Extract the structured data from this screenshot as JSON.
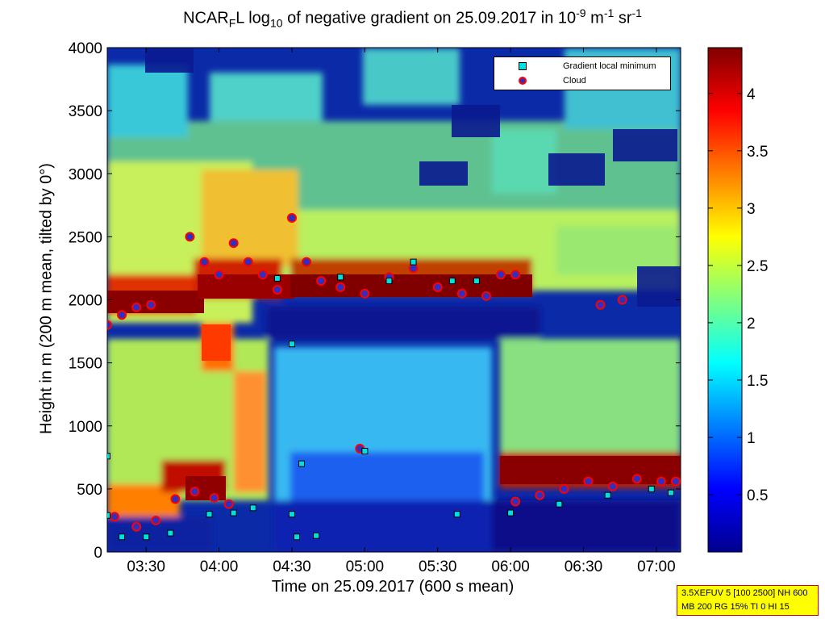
{
  "window": {
    "title_main": "NCAR",
    "title_sub1": "F",
    "title_mid": "L log",
    "title_sub2": "10",
    "title_rest": " of negative gradient on 25.09.2017 in 10",
    "title_sup1": "-9",
    "title_unit1": " m",
    "title_sup2": "-1",
    "title_unit2": " sr",
    "title_sup3": "-1"
  },
  "colors": {
    "cloud_marker_edge": "#ff0000",
    "cloud_marker_fill": "#3030c0",
    "minimum_marker_fill": "#00e0e0",
    "info_bg": "#ffff00",
    "info_border": "#d40000"
  },
  "info_box": {
    "line1": "3.5XEFUV 5 [100 2500] NH 600",
    "line2": "MB 200 RG 15% TI 0 HI 15"
  },
  "chart_data": {
    "type": "heatmap",
    "title": "NCAR_F L log10 of negative gradient on 25.09.2017 in 10^-9 m^-1 sr^-1",
    "xlabel": "Time on 25.09.2017 (600 s mean)",
    "ylabel": "Height in m (200 m mean, tilted by 0°)",
    "x_ticks": [
      "03:30",
      "04:00",
      "04:30",
      "05:00",
      "05:30",
      "06:00",
      "06:30",
      "07:00"
    ],
    "x_tick_minutes": [
      210,
      240,
      270,
      300,
      330,
      360,
      390,
      420
    ],
    "xlim_minutes": [
      194,
      430
    ],
    "y_ticks": [
      0,
      500,
      1000,
      1500,
      2000,
      2500,
      3000,
      3500,
      4000
    ],
    "ylim": [
      0,
      4000
    ],
    "colorbar": {
      "ticks": [
        "0.5",
        "1",
        "1.5",
        "2",
        "2.5",
        "3",
        "3.5",
        "4"
      ],
      "tick_values": [
        0.5,
        1,
        1.5,
        2,
        2.5,
        3,
        3.5,
        4
      ],
      "range": [
        0,
        4.4
      ],
      "colormap": "jet"
    },
    "legend": {
      "placement": "top-right",
      "entries": [
        "Gradient local minimum",
        "Cloud"
      ]
    },
    "cloud_tops": [
      {
        "t": 194,
        "h": 1800
      },
      {
        "t": 200,
        "h": 1880
      },
      {
        "t": 206,
        "h": 1940
      },
      {
        "t": 212,
        "h": 1960
      },
      {
        "t": 228,
        "h": 2500
      },
      {
        "t": 234,
        "h": 2300
      },
      {
        "t": 240,
        "h": 2200
      },
      {
        "t": 246,
        "h": 2450
      },
      {
        "t": 252,
        "h": 2300
      },
      {
        "t": 258,
        "h": 2200
      },
      {
        "t": 264,
        "h": 2080
      },
      {
        "t": 270,
        "h": 2650
      },
      {
        "t": 276,
        "h": 2300
      },
      {
        "t": 282,
        "h": 2150
      },
      {
        "t": 290,
        "h": 2100
      },
      {
        "t": 300,
        "h": 2050
      },
      {
        "t": 310,
        "h": 2180
      },
      {
        "t": 320,
        "h": 2250
      },
      {
        "t": 330,
        "h": 2100
      },
      {
        "t": 340,
        "h": 2050
      },
      {
        "t": 350,
        "h": 2030
      },
      {
        "t": 356,
        "h": 2200
      },
      {
        "t": 362,
        "h": 2200
      },
      {
        "t": 397,
        "h": 1960
      },
      {
        "t": 406,
        "h": 2000
      },
      {
        "t": 197,
        "h": 280
      },
      {
        "t": 206,
        "h": 200
      },
      {
        "t": 214,
        "h": 250
      },
      {
        "t": 222,
        "h": 420
      },
      {
        "t": 230,
        "h": 480
      },
      {
        "t": 238,
        "h": 430
      },
      {
        "t": 244,
        "h": 380
      },
      {
        "t": 298,
        "h": 820
      },
      {
        "t": 362,
        "h": 400
      },
      {
        "t": 372,
        "h": 450
      },
      {
        "t": 382,
        "h": 500
      },
      {
        "t": 392,
        "h": 560
      },
      {
        "t": 402,
        "h": 520
      },
      {
        "t": 412,
        "h": 580
      },
      {
        "t": 422,
        "h": 560
      },
      {
        "t": 428,
        "h": 560
      }
    ],
    "gradient_minima": [
      {
        "t": 194,
        "h": 760
      },
      {
        "t": 194,
        "h": 290
      },
      {
        "t": 200,
        "h": 120
      },
      {
        "t": 210,
        "h": 120
      },
      {
        "t": 220,
        "h": 150
      },
      {
        "t": 236,
        "h": 300
      },
      {
        "t": 246,
        "h": 310
      },
      {
        "t": 254,
        "h": 350
      },
      {
        "t": 264,
        "h": 2170
      },
      {
        "t": 270,
        "h": 1650
      },
      {
        "t": 274,
        "h": 700
      },
      {
        "t": 270,
        "h": 300
      },
      {
        "t": 272,
        "h": 120
      },
      {
        "t": 280,
        "h": 130
      },
      {
        "t": 300,
        "h": 800
      },
      {
        "t": 290,
        "h": 2180
      },
      {
        "t": 310,
        "h": 2150
      },
      {
        "t": 320,
        "h": 2300
      },
      {
        "t": 336,
        "h": 2150
      },
      {
        "t": 346,
        "h": 2150
      },
      {
        "t": 338,
        "h": 300
      },
      {
        "t": 360,
        "h": 310
      },
      {
        "t": 380,
        "h": 380
      },
      {
        "t": 400,
        "h": 450
      },
      {
        "t": 418,
        "h": 500
      },
      {
        "t": 426,
        "h": 470
      }
    ]
  }
}
